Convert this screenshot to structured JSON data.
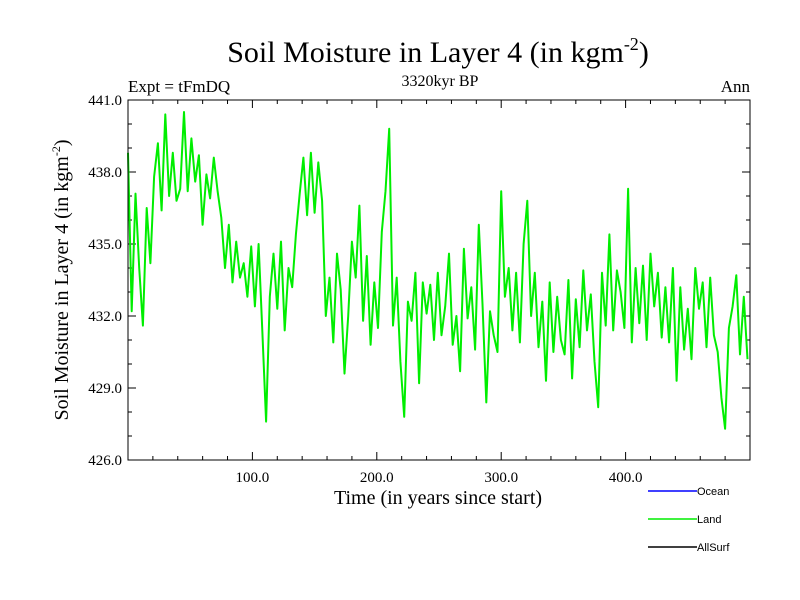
{
  "chart_data": {
    "type": "line",
    "title_main": "Soil Moisture in Layer 4 (in kgm",
    "title_exp": "-2",
    "title_close": ")",
    "subtitle": "3320kyr BP",
    "left_label": "Expt = tFmDQ",
    "right_label": "Ann",
    "xlabel": "Time (in years since start)",
    "ylabel_main": "Soil Moisture in Layer 4 (in kgm",
    "ylabel_exp": "-2",
    "ylabel_close": ")",
    "xlim": [
      0,
      500
    ],
    "ylim": [
      426,
      441
    ],
    "xticks": [
      100,
      200,
      300,
      400
    ],
    "xtick_labels": [
      "100.0",
      "200.0",
      "300.0",
      "400.0"
    ],
    "yticks": [
      426,
      429,
      432,
      435,
      438,
      441
    ],
    "ytick_labels": [
      "426.0",
      "429.0",
      "432.0",
      "435.0",
      "438.0",
      "441.0"
    ],
    "legend": [
      {
        "name": "Ocean",
        "color": "#0000ff"
      },
      {
        "name": "Land",
        "color": "#00ee00"
      },
      {
        "name": "AllSurf",
        "color": "#000000"
      }
    ],
    "series": [
      {
        "name": "Land",
        "color": "#00ee00",
        "x": [
          0,
          3,
          6,
          9,
          12,
          15,
          18,
          21,
          24,
          27,
          30,
          33,
          36,
          39,
          42,
          45,
          48,
          51,
          54,
          57,
          60,
          63,
          66,
          69,
          72,
          75,
          78,
          81,
          84,
          87,
          90,
          93,
          96,
          99,
          102,
          105,
          108,
          111,
          114,
          117,
          120,
          123,
          126,
          129,
          132,
          135,
          138,
          141,
          144,
          147,
          150,
          153,
          156,
          159,
          162,
          165,
          168,
          171,
          174,
          177,
          180,
          183,
          186,
          189,
          192,
          195,
          198,
          201,
          204,
          207,
          210,
          213,
          216,
          219,
          222,
          225,
          228,
          231,
          234,
          237,
          240,
          243,
          246,
          249,
          252,
          255,
          258,
          261,
          264,
          267,
          270,
          273,
          276,
          279,
          282,
          285,
          288,
          291,
          294,
          297,
          300,
          303,
          306,
          309,
          312,
          315,
          318,
          321,
          324,
          327,
          330,
          333,
          336,
          339,
          342,
          345,
          348,
          351,
          354,
          357,
          360,
          363,
          366,
          369,
          372,
          375,
          378,
          381,
          384,
          387,
          390,
          393,
          396,
          399,
          402,
          405,
          408,
          411,
          414,
          417,
          420,
          423,
          426,
          429,
          432,
          435,
          438,
          441,
          444,
          447,
          450,
          453,
          456,
          459,
          462,
          465,
          468,
          471,
          474,
          477,
          480,
          483,
          486,
          489,
          492,
          495,
          498
        ],
        "values": [
          438.8,
          432.2,
          437.1,
          434.0,
          431.6,
          436.5,
          434.2,
          437.8,
          439.2,
          436.4,
          440.4,
          437.0,
          438.8,
          436.8,
          437.3,
          440.5,
          437.2,
          439.4,
          437.6,
          438.7,
          435.8,
          437.9,
          436.9,
          438.6,
          437.2,
          436.1,
          434.0,
          435.8,
          433.4,
          435.1,
          433.6,
          434.2,
          432.8,
          434.9,
          432.4,
          435.0,
          431.3,
          427.6,
          432.8,
          434.6,
          432.3,
          435.1,
          431.4,
          434.0,
          433.2,
          435.4,
          437.1,
          438.6,
          436.2,
          438.8,
          436.3,
          438.4,
          436.8,
          432.0,
          433.6,
          430.9,
          434.6,
          433.1,
          429.6,
          432.0,
          435.1,
          433.6,
          436.6,
          431.8,
          434.5,
          430.8,
          433.4,
          431.5,
          435.5,
          437.2,
          439.8,
          431.6,
          433.6,
          430.1,
          427.8,
          432.6,
          431.8,
          433.8,
          429.2,
          433.4,
          432.1,
          433.3,
          431.0,
          433.8,
          431.2,
          432.4,
          434.6,
          430.8,
          432.0,
          429.7,
          434.8,
          431.9,
          433.2,
          430.6,
          435.8,
          432.5,
          428.4,
          432.2,
          431.2,
          430.5,
          437.2,
          432.8,
          434.0,
          431.4,
          433.8,
          430.9,
          435.0,
          436.8,
          432.0,
          433.8,
          430.7,
          432.6,
          429.3,
          433.4,
          430.5,
          432.8,
          431.0,
          430.4,
          433.5,
          429.4,
          432.7,
          430.7,
          433.9,
          431.4,
          432.9,
          430.1,
          428.2,
          433.8,
          431.6,
          435.4,
          431.4,
          433.9,
          433.0,
          431.5,
          437.3,
          430.9,
          434.0,
          431.7,
          434.1,
          431.0,
          434.6,
          432.4,
          433.8,
          431.1,
          433.2,
          430.9,
          434.0,
          429.3,
          433.2,
          430.6,
          432.3,
          430.2,
          434.0,
          432.3,
          433.4,
          430.7,
          433.6,
          431.2,
          430.5,
          428.6,
          427.3,
          431.5,
          432.4,
          433.7,
          430.4,
          432.8,
          430.2
        ]
      }
    ]
  }
}
